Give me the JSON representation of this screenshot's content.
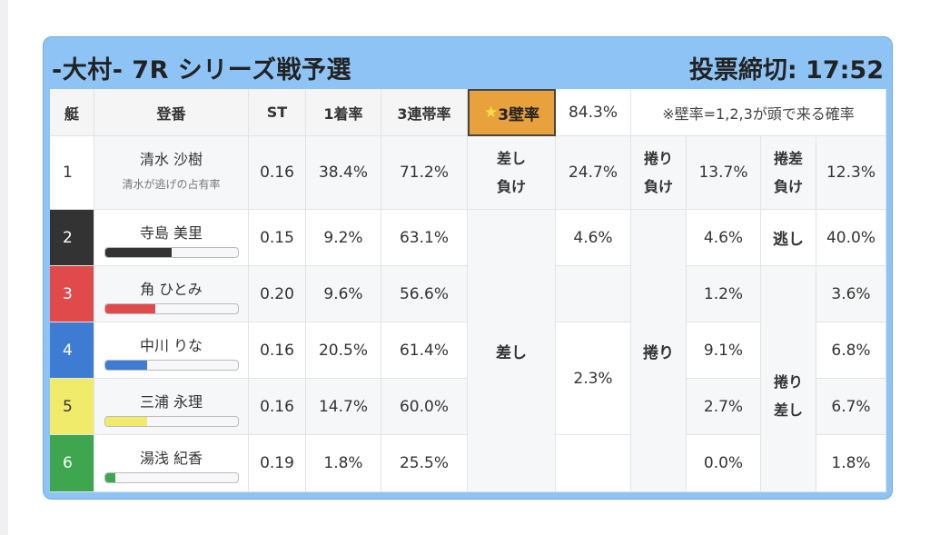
{
  "header": {
    "title": "-大村- 7R シリーズ戦予選",
    "deadline": "投票締切: 17:52"
  },
  "columns": {
    "lane": "艇",
    "racer": "登番",
    "st": "ST",
    "win": "1着率",
    "top3": "3連帯率",
    "wall": "3壁率",
    "wall_rate": "84.3%",
    "note": "※壁率=1,2,3が頭で来る確率"
  },
  "wall_star": "★",
  "rows": [
    {
      "lane": "1",
      "name": "清水 沙樹",
      "sub": "清水が逃げの占有率",
      "st": "0.16",
      "win": "38.4%",
      "top3": "71.2%",
      "color": "#ffffff",
      "bar": 0
    },
    {
      "lane": "2",
      "name": "寺島 美里",
      "st": "0.15",
      "win": "9.2%",
      "top3": "63.1%",
      "color": "#333333",
      "bar": 0.5
    },
    {
      "lane": "3",
      "name": "角 ひとみ",
      "st": "0.20",
      "win": "9.6%",
      "top3": "56.6%",
      "color": "#e04a4a",
      "bar": 0.38
    },
    {
      "lane": "4",
      "name": "中川 りな",
      "st": "0.16",
      "win": "20.5%",
      "top3": "61.4%",
      "color": "#3e7cd3",
      "bar": 0.32
    },
    {
      "lane": "5",
      "name": "三浦 永理",
      "st": "0.16",
      "win": "14.7%",
      "top3": "60.0%",
      "color": "#f0eb6a",
      "bar": 0.32
    },
    {
      "lane": "6",
      "name": "湯浅 紀香",
      "st": "0.19",
      "win": "1.8%",
      "top3": "25.5%",
      "color": "#3ea64e",
      "bar": 0.08
    }
  ],
  "kimarite": {
    "g1": {
      "label1": "差し",
      "label1b": "負け",
      "rate1": "24.7%",
      "rate2": "4.6%",
      "big": "差し",
      "rate4": "2.3%"
    },
    "g2": {
      "label1": "捲り",
      "label1b": "負け",
      "rate1": "13.7%",
      "rate2": "4.6%",
      "rate3": "1.2%",
      "big": "捲り",
      "rate4": "9.1%",
      "rate5": "2.7%",
      "rate6": "0.0%"
    },
    "g3": {
      "label1": "捲差",
      "label1b": "負け",
      "rate1": "12.3%",
      "label2": "逃し",
      "rate2": "40.0%",
      "rate3": "3.6%",
      "big1": "捲り",
      "big2": "差し",
      "rate4": "6.8%",
      "rate5": "6.7%",
      "rate6": "1.8%"
    }
  }
}
